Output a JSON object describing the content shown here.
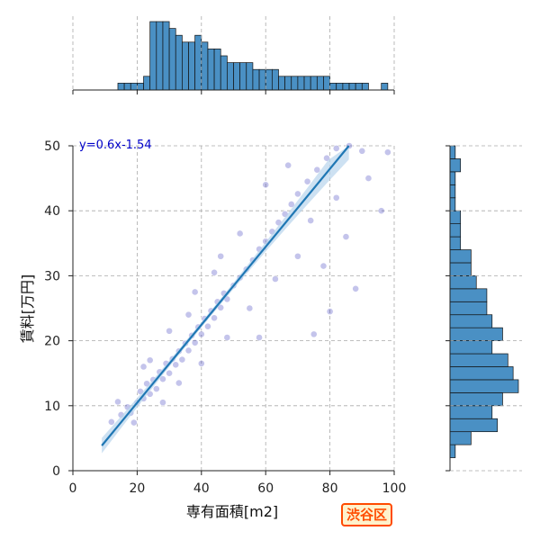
{
  "chart_data": {
    "type": "scatter",
    "title": "",
    "xlabel": "専有面積[m2]",
    "ylabel": "賃料[万円]",
    "xlim": [
      0,
      100
    ],
    "ylim": [
      0,
      50
    ],
    "xticks": [
      "0",
      "20",
      "40",
      "60",
      "80",
      "100"
    ],
    "yticks": [
      "0",
      "10",
      "20",
      "30",
      "40",
      "50"
    ],
    "grid": true,
    "regression": {
      "label": "y=0.6x-1.54",
      "slope": 0.6,
      "intercept": -1.54,
      "x_range": [
        9,
        97
      ]
    },
    "points": [
      [
        12,
        7.5
      ],
      [
        15,
        8.6
      ],
      [
        17,
        9.8
      ],
      [
        18,
        8.9
      ],
      [
        20,
        10.5
      ],
      [
        21,
        12.2
      ],
      [
        22,
        11.1
      ],
      [
        23,
        13.4
      ],
      [
        24,
        11.8
      ],
      [
        25,
        14.0
      ],
      [
        26,
        12.6
      ],
      [
        27,
        15.2
      ],
      [
        28,
        14.1
      ],
      [
        29,
        16.5
      ],
      [
        30,
        15.0
      ],
      [
        31,
        17.2
      ],
      [
        32,
        16.3
      ],
      [
        33,
        18.4
      ],
      [
        34,
        17.1
      ],
      [
        35,
        19.6
      ],
      [
        36,
        18.5
      ],
      [
        37,
        20.8
      ],
      [
        38,
        19.7
      ],
      [
        39,
        22.1
      ],
      [
        40,
        21.0
      ],
      [
        41,
        23.4
      ],
      [
        42,
        22.2
      ],
      [
        43,
        24.6
      ],
      [
        44,
        23.5
      ],
      [
        45,
        26.0
      ],
      [
        46,
        25.1
      ],
      [
        47,
        27.3
      ],
      [
        48,
        26.4
      ],
      [
        50,
        28.5
      ],
      [
        52,
        29.7
      ],
      [
        54,
        31.0
      ],
      [
        56,
        32.4
      ],
      [
        58,
        34.1
      ],
      [
        60,
        35.3
      ],
      [
        62,
        36.8
      ],
      [
        64,
        38.2
      ],
      [
        66,
        39.5
      ],
      [
        68,
        41.0
      ],
      [
        70,
        42.6
      ],
      [
        73,
        44.5
      ],
      [
        76,
        46.3
      ],
      [
        79,
        48.1
      ],
      [
        82,
        49.6
      ],
      [
        86,
        50.0
      ],
      [
        90,
        49.2
      ],
      [
        14,
        10.6
      ],
      [
        19,
        7.4
      ],
      [
        24,
        17.0
      ],
      [
        28,
        10.5
      ],
      [
        33,
        13.5
      ],
      [
        36,
        24.0
      ],
      [
        40,
        16.5
      ],
      [
        44,
        30.5
      ],
      [
        48,
        20.5
      ],
      [
        52,
        36.5
      ],
      [
        55,
        25.0
      ],
      [
        60,
        44.0
      ],
      [
        63,
        29.5
      ],
      [
        67,
        47.0
      ],
      [
        70,
        33.0
      ],
      [
        74,
        38.5
      ],
      [
        78,
        31.5
      ],
      [
        82,
        42.0
      ],
      [
        85,
        36.0
      ],
      [
        88,
        28.0
      ],
      [
        92,
        45.0
      ],
      [
        96,
        40.0
      ],
      [
        98,
        49.0
      ],
      [
        75,
        21.0
      ],
      [
        80,
        24.5
      ],
      [
        58,
        20.5
      ],
      [
        46,
        33.0
      ],
      [
        38,
        27.5
      ],
      [
        30,
        21.5
      ],
      [
        22,
        16.0
      ]
    ],
    "x_hist": {
      "bins": [
        4,
        6,
        8,
        10,
        12,
        14,
        16,
        18,
        20,
        22,
        24,
        26,
        28,
        30,
        32,
        34,
        36,
        38,
        40,
        42,
        44,
        46,
        48,
        50,
        52,
        54,
        56,
        58,
        60,
        62,
        64,
        66,
        68,
        70,
        72,
        74,
        76,
        78,
        80,
        82,
        84,
        86,
        88,
        90,
        92,
        94,
        96,
        98,
        100
      ],
      "counts": [
        0,
        0,
        0,
        0,
        0,
        1,
        1,
        1,
        1,
        2,
        10,
        10,
        10,
        9,
        8,
        7,
        7,
        8,
        7,
        6,
        6,
        5,
        4,
        4,
        4,
        4,
        3,
        3,
        3,
        3,
        2,
        2,
        2,
        2,
        2,
        2,
        2,
        2,
        1,
        1,
        1,
        1,
        1,
        1,
        0,
        0,
        1,
        0
      ]
    },
    "y_hist": {
      "bins": [
        0,
        2,
        4,
        6,
        8,
        10,
        12,
        14,
        16,
        18,
        20,
        22,
        24,
        26,
        28,
        30,
        32,
        34,
        36,
        38,
        40,
        42,
        44,
        46,
        48,
        50
      ],
      "counts": [
        0,
        1,
        4,
        9,
        8,
        10,
        13,
        12,
        11,
        8,
        10,
        8,
        7,
        7,
        5,
        4,
        4,
        2,
        2,
        2,
        1,
        1,
        1,
        2,
        1
      ]
    }
  },
  "annotation": {
    "ward_label": "渋谷区"
  },
  "colors": {
    "points": "#2a2ab8",
    "regression": "#1f77b4",
    "band": "#b8d4ec",
    "hist": "#4a90c4",
    "eq_text": "#0000c8",
    "badge_text": "#ff4b00"
  }
}
